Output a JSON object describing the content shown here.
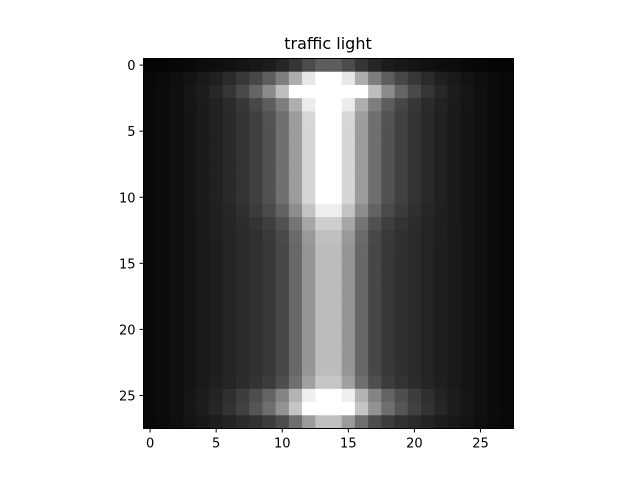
{
  "chart_data": {
    "type": "heatmap",
    "title": "traffic light",
    "colormap": "gray",
    "xlabel": "",
    "ylabel": "",
    "rows": 28,
    "cols": 28,
    "x_ticks": [
      0,
      5,
      10,
      15,
      20,
      25
    ],
    "y_ticks": [
      0,
      5,
      10,
      15,
      20,
      25
    ],
    "value_range": [
      0,
      1
    ],
    "grid": false,
    "model": {
      "vertical_envelope": {
        "core_rows": [
          1.5,
          26.5
        ],
        "edge_falloff_rows": 1.2
      },
      "outer_glow": {
        "center_col": 13.5,
        "width_cols": 10.0,
        "value": 0.24
      },
      "column": {
        "center_col": 13.5,
        "width_cols": 1.7,
        "value": 0.52
      },
      "hood": {
        "center_col": 13.5,
        "width_cols": 3.2,
        "rows": [
          4,
          10
        ],
        "value": 0.28
      },
      "top_bar": {
        "center_row": 1.8,
        "height_rows": 0.7,
        "width_cols": 3.4,
        "value": 0.75
      },
      "bottom_bar": {
        "center_row": 25.6,
        "height_rows": 0.7,
        "width_cols": 3.6,
        "value": 0.55
      }
    }
  }
}
